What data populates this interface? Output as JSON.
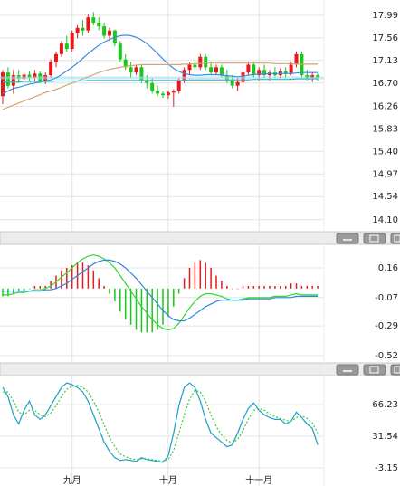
{
  "chart_data": [
    {
      "type": "candlestick",
      "up_color": "#e8191d",
      "down_color": "#19c819",
      "ylim": [
        13.89,
        18.28
      ],
      "yticks": [
        17.99,
        17.56,
        17.13,
        {
          "value": 16.7,
          "label": "16.70"
        },
        16.26,
        15.83,
        {
          "value": 15.4,
          "label": "15.40"
        },
        14.97,
        14.54,
        {
          "value": 14.1,
          "label": "14.10"
        }
      ],
      "grid": true,
      "ohlc": [
        [
          16.45,
          16.95,
          16.3,
          16.9
        ],
        [
          16.9,
          17.0,
          16.6,
          16.65
        ],
        [
          16.65,
          16.95,
          16.5,
          16.85
        ],
        [
          16.85,
          16.95,
          16.7,
          16.78
        ],
        [
          16.78,
          16.9,
          16.72,
          16.86
        ],
        [
          16.86,
          16.92,
          16.75,
          16.8
        ],
        [
          16.8,
          16.95,
          16.72,
          16.88
        ],
        [
          16.88,
          16.92,
          16.7,
          16.74
        ],
        [
          16.74,
          16.9,
          16.68,
          16.85
        ],
        [
          16.85,
          17.15,
          16.8,
          17.1
        ],
        [
          17.1,
          17.3,
          17.0,
          17.25
        ],
        [
          17.25,
          17.5,
          17.2,
          17.45
        ],
        [
          17.45,
          17.6,
          17.3,
          17.35
        ],
        [
          17.35,
          17.7,
          17.3,
          17.65
        ],
        [
          17.65,
          17.8,
          17.55,
          17.75
        ],
        [
          17.75,
          17.9,
          17.6,
          17.7
        ],
        [
          17.7,
          18.0,
          17.65,
          17.95
        ],
        [
          17.95,
          18.05,
          17.8,
          17.85
        ],
        [
          17.85,
          17.95,
          17.7,
          17.78
        ],
        [
          17.78,
          17.85,
          17.55,
          17.6
        ],
        [
          17.6,
          17.75,
          17.5,
          17.7
        ],
        [
          17.7,
          17.72,
          17.4,
          17.45
        ],
        [
          17.45,
          17.5,
          17.1,
          17.15
        ],
        [
          17.15,
          17.25,
          16.95,
          17.0
        ],
        [
          17.0,
          17.1,
          16.8,
          16.9
        ],
        [
          16.9,
          17.05,
          16.85,
          17.0
        ],
        [
          17.0,
          17.05,
          16.7,
          16.75
        ],
        [
          16.75,
          16.85,
          16.6,
          16.7
        ],
        [
          16.7,
          16.8,
          16.5,
          16.55
        ],
        [
          16.55,
          16.65,
          16.45,
          16.5
        ],
        [
          16.5,
          16.55,
          16.42,
          16.47
        ],
        [
          16.47,
          16.55,
          16.4,
          16.52
        ],
        [
          16.52,
          16.58,
          16.25,
          16.55
        ],
        [
          16.55,
          16.8,
          16.5,
          16.75
        ],
        [
          16.75,
          17.0,
          16.7,
          16.95
        ],
        [
          16.95,
          17.1,
          16.85,
          17.05
        ],
        [
          17.05,
          17.15,
          16.95,
          17.0
        ],
        [
          17.0,
          17.25,
          16.95,
          17.2
        ],
        [
          17.2,
          17.25,
          16.95,
          17.0
        ],
        [
          17.0,
          17.1,
          16.85,
          16.9
        ],
        [
          16.9,
          17.05,
          16.85,
          17.0
        ],
        [
          17.0,
          17.05,
          16.8,
          16.85
        ],
        [
          16.85,
          16.95,
          16.7,
          16.75
        ],
        [
          16.75,
          16.85,
          16.6,
          16.65
        ],
        [
          16.65,
          16.8,
          16.55,
          16.72
        ],
        [
          16.72,
          16.95,
          16.65,
          16.9
        ],
        [
          16.9,
          17.1,
          16.85,
          17.05
        ],
        [
          17.05,
          17.1,
          16.8,
          16.85
        ],
        [
          16.85,
          17.0,
          16.75,
          16.95
        ],
        [
          16.95,
          17.05,
          16.8,
          16.85
        ],
        [
          16.85,
          16.95,
          16.75,
          16.9
        ],
        [
          16.9,
          17.0,
          16.8,
          16.85
        ],
        [
          16.85,
          16.98,
          16.78,
          16.92
        ],
        [
          16.92,
          17.0,
          16.8,
          16.88
        ],
        [
          16.88,
          17.1,
          16.85,
          17.05
        ],
        [
          17.05,
          17.3,
          17.0,
          17.25
        ],
        [
          17.25,
          17.3,
          16.8,
          16.85
        ],
        [
          16.85,
          16.95,
          16.75,
          16.8
        ],
        [
          16.8,
          16.9,
          16.72,
          16.85
        ],
        [
          16.85,
          16.88,
          16.75,
          16.8
        ]
      ],
      "series": [
        {
          "color": "#3a8ee6",
          "values": [
            16.5,
            16.55,
            16.6,
            16.62,
            16.65,
            16.68,
            16.7,
            16.72,
            16.74,
            16.76,
            16.8,
            16.86,
            16.93,
            17.0,
            17.08,
            17.17,
            17.26,
            17.34,
            17.42,
            17.48,
            17.53,
            17.57,
            17.6,
            17.61,
            17.6,
            17.57,
            17.52,
            17.45,
            17.36,
            17.26,
            17.16,
            17.06,
            16.98,
            16.92,
            16.88,
            16.86,
            16.85,
            16.85,
            16.86,
            16.86,
            16.86,
            16.85,
            16.84,
            16.83,
            16.82,
            16.83,
            16.85,
            16.86,
            16.87,
            16.87,
            16.88,
            16.88,
            16.88,
            16.88,
            16.88,
            16.89,
            16.9,
            16.9,
            16.9,
            16.9
          ]
        },
        {
          "color": "#d6a476",
          "values": [
            16.2,
            16.24,
            16.28,
            16.32,
            16.36,
            16.4,
            16.44,
            16.48,
            16.52,
            16.55,
            16.58,
            16.62,
            16.66,
            16.7,
            16.74,
            16.78,
            16.82,
            16.86,
            16.9,
            16.93,
            16.96,
            16.98,
            17.0,
            17.02,
            17.03,
            17.04,
            17.05,
            17.05,
            17.05,
            17.05,
            17.05,
            17.05,
            17.05,
            17.05,
            17.06,
            17.06,
            17.07,
            17.07,
            17.08,
            17.08,
            17.08,
            17.08,
            17.08,
            17.08,
            17.08,
            17.08,
            17.08,
            17.08,
            17.08,
            17.08,
            17.08,
            17.07,
            17.07,
            17.07,
            17.07,
            17.06,
            17.06,
            17.06,
            17.06,
            17.06
          ]
        },
        {
          "color": "#3cbcbc",
          "values": [
            16.72,
            16.72,
            16.72,
            16.72,
            16.73,
            16.73,
            16.73,
            16.73,
            16.73,
            16.73,
            16.74,
            16.74,
            16.74,
            16.74,
            16.74,
            16.74,
            16.75,
            16.75,
            16.75,
            16.75,
            16.75,
            16.75,
            16.75,
            16.75,
            16.75,
            16.75,
            16.75,
            16.75,
            16.75,
            16.75,
            16.75,
            16.75,
            16.75,
            16.75,
            16.75,
            16.76,
            16.76,
            16.76,
            16.76,
            16.76,
            16.76,
            16.76,
            16.76,
            16.76,
            16.76,
            16.76,
            16.76,
            16.77,
            16.77,
            16.77,
            16.77,
            16.77,
            16.77,
            16.77,
            16.77,
            16.78,
            16.78,
            16.78,
            16.78,
            16.78
          ]
        }
      ]
    },
    {
      "type": "macd",
      "ylim": [
        -0.569,
        0.342
      ],
      "yticks": [
        0.16,
        -0.07,
        -0.29,
        -0.52
      ],
      "bar_up_color": "#e8191d",
      "bar_down_color": "#19c819",
      "bars": [
        -0.06,
        -0.06,
        -0.04,
        -0.02,
        -0.02,
        0,
        0.02,
        0.02,
        0.02,
        0.06,
        0.1,
        0.14,
        0.16,
        0.18,
        0.2,
        0.2,
        0.18,
        0.14,
        0.08,
        0.02,
        -0.04,
        -0.1,
        -0.18,
        -0.24,
        -0.28,
        -0.32,
        -0.34,
        -0.34,
        -0.34,
        -0.32,
        -0.28,
        -0.22,
        -0.14,
        -0.04,
        0.08,
        0.16,
        0.2,
        0.22,
        0.2,
        0.16,
        0.1,
        0.06,
        0.02,
        0,
        0,
        0.02,
        0.02,
        0.02,
        0.02,
        0.02,
        0.02,
        0.02,
        0.02,
        0.02,
        0.04,
        0.04,
        0.02,
        0.02,
        0.02,
        0.02
      ],
      "series": [
        {
          "color": "#2ed82e",
          "values": [
            -0.05,
            -0.05,
            -0.04,
            -0.03,
            -0.03,
            -0.02,
            -0.01,
            -0.01,
            0.0,
            0.02,
            0.05,
            0.09,
            0.12,
            0.16,
            0.2,
            0.23,
            0.25,
            0.26,
            0.25,
            0.23,
            0.2,
            0.16,
            0.1,
            0.04,
            -0.02,
            -0.08,
            -0.14,
            -0.19,
            -0.24,
            -0.28,
            -0.31,
            -0.32,
            -0.31,
            -0.27,
            -0.21,
            -0.15,
            -0.1,
            -0.06,
            -0.04,
            -0.04,
            -0.05,
            -0.06,
            -0.08,
            -0.09,
            -0.09,
            -0.08,
            -0.07,
            -0.07,
            -0.07,
            -0.07,
            -0.07,
            -0.06,
            -0.06,
            -0.06,
            -0.05,
            -0.04,
            -0.05,
            -0.05,
            -0.05,
            -0.05
          ]
        },
        {
          "color": "#2f86e0",
          "values": [
            -0.02,
            -0.02,
            -0.02,
            -0.02,
            -0.02,
            -0.02,
            -0.02,
            -0.02,
            -0.01,
            -0.01,
            0.0,
            0.02,
            0.04,
            0.07,
            0.1,
            0.13,
            0.16,
            0.19,
            0.21,
            0.22,
            0.22,
            0.21,
            0.19,
            0.16,
            0.12,
            0.08,
            0.03,
            -0.02,
            -0.07,
            -0.12,
            -0.17,
            -0.21,
            -0.24,
            -0.25,
            -0.25,
            -0.23,
            -0.2,
            -0.17,
            -0.14,
            -0.12,
            -0.1,
            -0.09,
            -0.09,
            -0.09,
            -0.09,
            -0.09,
            -0.08,
            -0.08,
            -0.08,
            -0.08,
            -0.08,
            -0.07,
            -0.07,
            -0.07,
            -0.07,
            -0.06,
            -0.06,
            -0.06,
            -0.06,
            -0.06
          ]
        }
      ]
    },
    {
      "type": "line",
      "ylim": [
        -23,
        98
      ],
      "yticks": [
        66.23,
        31.54,
        -3.15
      ],
      "categories": [
        null,
        null,
        null,
        null,
        null,
        null,
        null,
        null,
        null,
        null,
        null,
        null,
        null,
        "九月",
        null,
        null,
        null,
        null,
        null,
        null,
        null,
        null,
        null,
        null,
        null,
        null,
        null,
        null,
        null,
        null,
        null,
        "十月",
        null,
        null,
        null,
        null,
        null,
        null,
        null,
        null,
        null,
        null,
        null,
        null,
        null,
        null,
        null,
        null,
        "十一月",
        null,
        null,
        null,
        null,
        null,
        null,
        null,
        null,
        null,
        null,
        null
      ],
      "series": [
        {
          "color": "#1a9ec8",
          "dashed": false,
          "values": [
            85,
            75,
            55,
            45,
            60,
            70,
            55,
            50,
            55,
            65,
            75,
            85,
            90,
            88,
            85,
            80,
            70,
            55,
            40,
            25,
            15,
            8,
            5,
            6,
            5,
            4,
            8,
            6,
            5,
            4,
            3,
            10,
            35,
            65,
            85,
            90,
            85,
            70,
            50,
            35,
            30,
            25,
            20,
            22,
            35,
            50,
            62,
            68,
            60,
            55,
            52,
            50,
            50,
            45,
            48,
            58,
            52,
            45,
            40,
            22
          ]
        },
        {
          "color": "#3cc83c",
          "dashed": true,
          "values": [
            80,
            80,
            70,
            58,
            55,
            60,
            60,
            55,
            53,
            57,
            65,
            75,
            83,
            86,
            87,
            85,
            80,
            70,
            58,
            44,
            30,
            20,
            12,
            9,
            7,
            6,
            7,
            7,
            6,
            5,
            4,
            6,
            16,
            35,
            55,
            72,
            82,
            80,
            70,
            55,
            42,
            33,
            27,
            24,
            28,
            38,
            50,
            60,
            62,
            60,
            56,
            53,
            51,
            49,
            48,
            52,
            54,
            51,
            46,
            35
          ]
        }
      ]
    }
  ]
}
